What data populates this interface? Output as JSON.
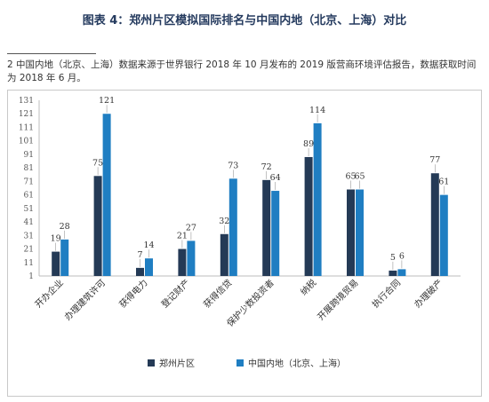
{
  "figure": {
    "title": "图表 4：郑州片区模拟国际排名与中国内地（北京、上海）对比",
    "note": "2 中国内地（北京、上海）数据来源于世界银行 2018 年 10 月发布的 2019 版营商环境评估报告，数据获取时间为 2018 年 6 月。"
  },
  "colors": {
    "series1": "#243a56",
    "series2": "#1f7ec2"
  },
  "chart_data": {
    "type": "bar",
    "title": "",
    "xlabel": "",
    "ylabel": "",
    "categories": [
      "开办企业",
      "办理建筑许可",
      "获得电力",
      "登记财产",
      "获得信贷",
      "保护少数投资者",
      "纳税",
      "开展跨境贸易",
      "执行合同",
      "办理破产"
    ],
    "series": [
      {
        "name": "郑州片区",
        "values": [
          19,
          75,
          7,
          21,
          32,
          72,
          89,
          65,
          5,
          77
        ]
      },
      {
        "name": "中国内地（北京、上海）",
        "values": [
          28,
          121,
          14,
          27,
          73,
          64,
          114,
          65,
          6,
          61
        ]
      }
    ],
    "ylim": [
      1,
      131
    ],
    "yticks": [
      1,
      11,
      21,
      31,
      41,
      51,
      61,
      71,
      81,
      91,
      101,
      111,
      121,
      131
    ],
    "grid": false,
    "legend": "bottom-center"
  }
}
